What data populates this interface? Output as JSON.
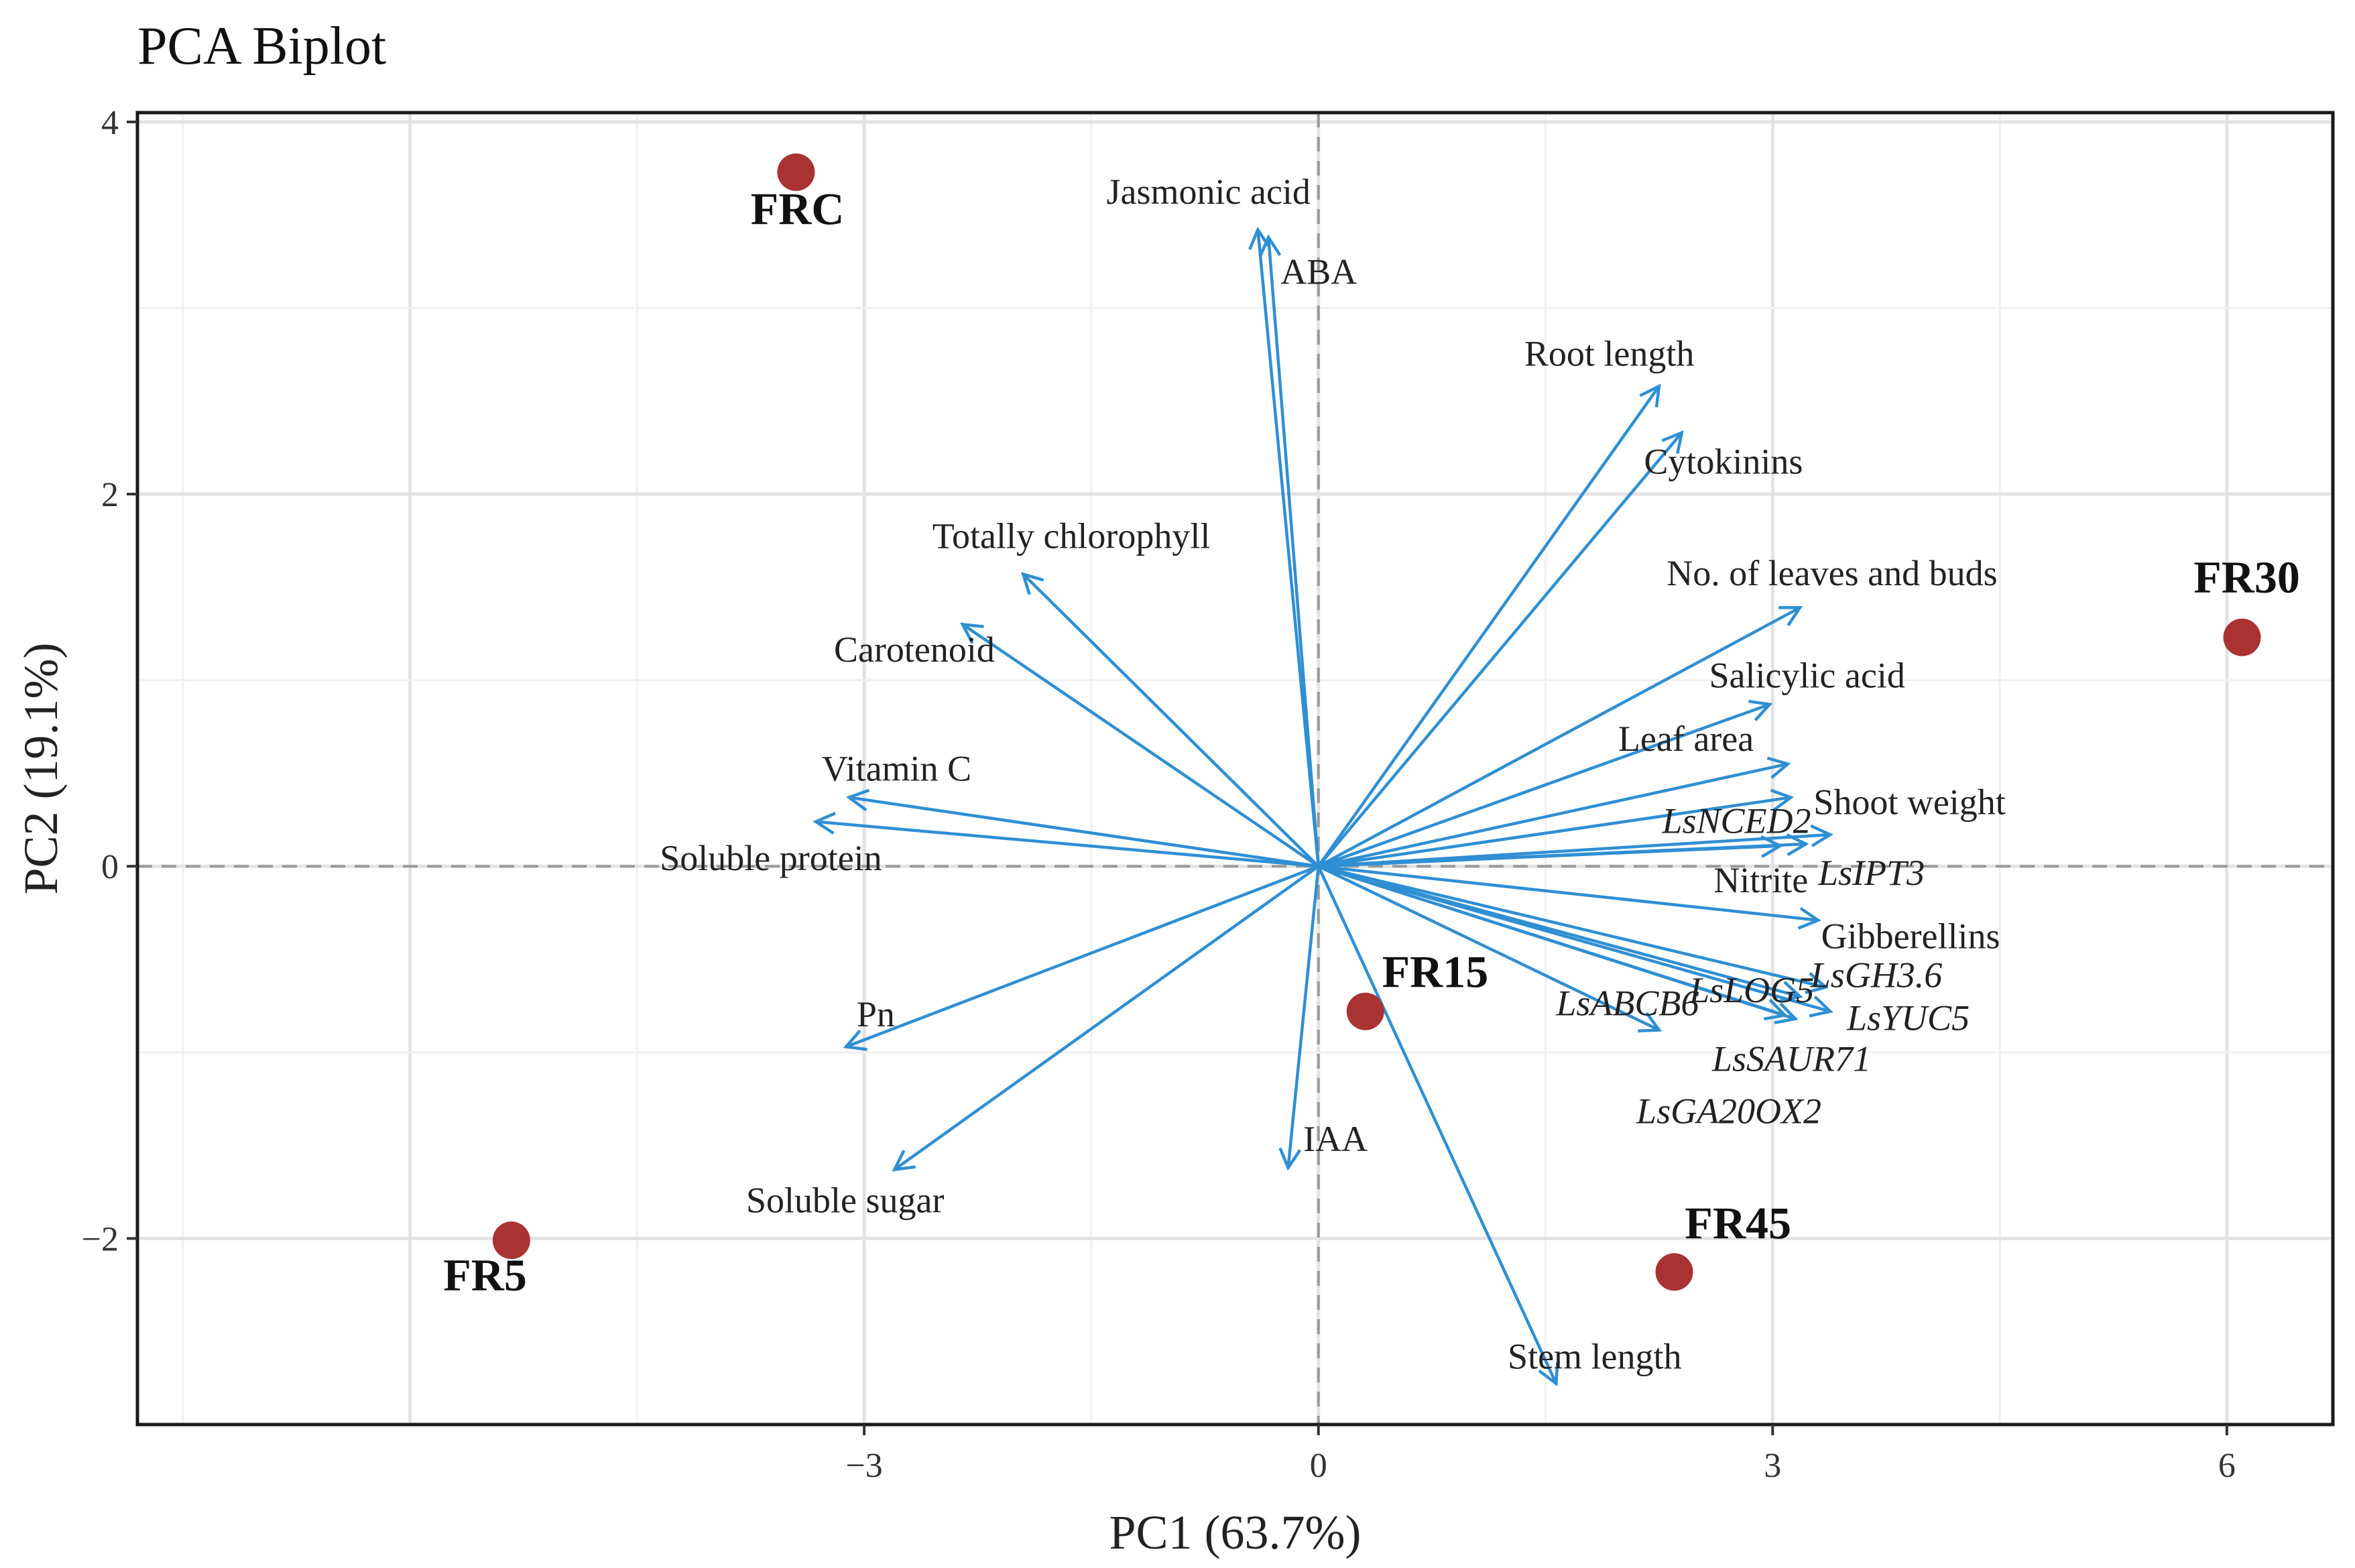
{
  "chart_data": {
    "type": "scatter",
    "title": "PCA Biplot",
    "xlabel": "PC1 (63.7%)",
    "ylabel": "PC2 (19.1%)",
    "xlim": [
      -7.8,
      6.7
    ],
    "ylim": [
      -3.0,
      4.05
    ],
    "xticks": [
      -3,
      0,
      3,
      6
    ],
    "yticks": [
      -2,
      0,
      2,
      4
    ],
    "xtick_labels": [
      "−3",
      "0",
      "3",
      "6"
    ],
    "ytick_labels": [
      "−2",
      "0",
      "2",
      "4"
    ],
    "samples": [
      {
        "name": "FRC",
        "x": -3.45,
        "y": 3.73,
        "label_x": -3.75,
        "label_y": 3.45
      },
      {
        "name": "FR30",
        "x": 6.1,
        "y": 1.23,
        "label_x": 5.78,
        "label_y": 1.47
      },
      {
        "name": "FR15",
        "x": 0.31,
        "y": -0.78,
        "label_x": 0.42,
        "label_y": -0.65
      },
      {
        "name": "FR5",
        "x": -5.33,
        "y": -2.01,
        "label_x": -5.78,
        "label_y": -2.28
      },
      {
        "name": "FR45",
        "x": 2.35,
        "y": -2.18,
        "label_x": 2.42,
        "label_y": -2.0
      }
    ],
    "variables": [
      {
        "name": "Jasmonic acid",
        "x": -0.4,
        "y": 3.42,
        "label_x": -1.4,
        "label_y": 3.56,
        "italic": false
      },
      {
        "name": "ABA",
        "x": -0.33,
        "y": 3.38,
        "label_x": -0.25,
        "label_y": 3.13,
        "italic": false
      },
      {
        "name": "Root length",
        "x": 2.25,
        "y": 2.58,
        "label_x": 1.36,
        "label_y": 2.69,
        "italic": false
      },
      {
        "name": "Cytokinins",
        "x": 2.4,
        "y": 2.33,
        "label_x": 2.15,
        "label_y": 2.11,
        "italic": false
      },
      {
        "name": "No. of leaves and buds",
        "x": 3.18,
        "y": 1.39,
        "label_x": 2.3,
        "label_y": 1.51,
        "italic": false
      },
      {
        "name": "Salicylic acid",
        "x": 2.98,
        "y": 0.87,
        "label_x": 2.58,
        "label_y": 0.96,
        "italic": false
      },
      {
        "name": "Leaf area",
        "x": 3.1,
        "y": 0.55,
        "label_x": 1.98,
        "label_y": 0.62,
        "italic": false
      },
      {
        "name": "Shoot weight",
        "x": 3.12,
        "y": 0.37,
        "label_x": 3.27,
        "label_y": 0.28,
        "italic": false
      },
      {
        "name": "LsNCED2",
        "x": 3.38,
        "y": 0.17,
        "label_x": 2.27,
        "label_y": 0.18,
        "italic": true
      },
      {
        "name": "Nitrite",
        "x": 3.22,
        "y": 0.12,
        "label_x": 2.61,
        "label_y": -0.14,
        "italic": false
      },
      {
        "name": "LsIPT3",
        "x": 3.05,
        "y": 0.11,
        "label_x": 3.3,
        "label_y": -0.1,
        "italic": true
      },
      {
        "name": "Gibberellins",
        "x": 3.3,
        "y": -0.29,
        "label_x": 3.32,
        "label_y": -0.44,
        "italic": false
      },
      {
        "name": "LsGH3.6",
        "x": 3.35,
        "y": -0.65,
        "label_x": 3.25,
        "label_y": -0.65,
        "italic": true
      },
      {
        "name": "LsLOG5",
        "x": 3.18,
        "y": -0.7,
        "label_x": 2.45,
        "label_y": -0.73,
        "italic": true
      },
      {
        "name": "LsABCB6",
        "x": 2.25,
        "y": -0.88,
        "label_x": 1.57,
        "label_y": -0.8,
        "italic": true
      },
      {
        "name": "LsYUC5",
        "x": 3.38,
        "y": -0.78,
        "label_x": 3.49,
        "label_y": -0.88,
        "italic": true
      },
      {
        "name": "LsSAUR71",
        "x": 3.15,
        "y": -0.82,
        "label_x": 2.6,
        "label_y": -1.1,
        "italic": true
      },
      {
        "name": "LsGA20OX2",
        "x": 3.08,
        "y": -0.8,
        "label_x": 2.1,
        "label_y": -1.38,
        "italic": true
      },
      {
        "name": "Stem length",
        "x": 1.57,
        "y": -2.78,
        "label_x": 1.25,
        "label_y": -2.7,
        "italic": false
      },
      {
        "name": "IAA",
        "x": -0.2,
        "y": -1.62,
        "label_x": -0.1,
        "label_y": -1.53,
        "italic": false
      },
      {
        "name": "Soluble sugar",
        "x": -2.8,
        "y": -1.63,
        "label_x": -3.78,
        "label_y": -1.86,
        "italic": false
      },
      {
        "name": "Pn",
        "x": -3.12,
        "y": -0.97,
        "label_x": -3.05,
        "label_y": -0.86,
        "italic": false
      },
      {
        "name": "Soluble protein",
        "x": -3.32,
        "y": 0.24,
        "label_x": -4.35,
        "label_y": -0.02,
        "italic": false
      },
      {
        "name": "Vitamin C",
        "x": -3.1,
        "y": 0.37,
        "label_x": -3.28,
        "label_y": 0.46,
        "italic": false
      },
      {
        "name": "Carotenoid",
        "x": -2.35,
        "y": 1.3,
        "label_x": -3.2,
        "label_y": 1.1,
        "italic": false
      },
      {
        "name": "Totally chlorophyll",
        "x": -1.95,
        "y": 1.57,
        "label_x": -2.55,
        "label_y": 1.71,
        "italic": false
      }
    ],
    "colors": {
      "arrow": "#2f8fd3",
      "sample": "#a93232"
    }
  }
}
